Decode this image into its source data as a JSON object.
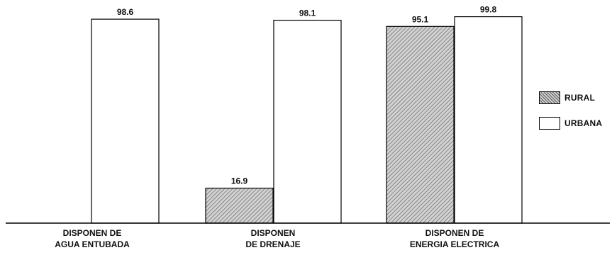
{
  "chart_data": {
    "type": "bar",
    "categories": [
      [
        "DISPONEN DE",
        "AGUA ENTUBADA"
      ],
      [
        "DISPONEN",
        "DE DRENAJE"
      ],
      [
        "DISPONEN DE",
        "ENERGIA ELECTRICA"
      ]
    ],
    "series": [
      {
        "name": "RURAL",
        "values": [
          null,
          16.9,
          95.1
        ],
        "color": "#cfcfcf",
        "pattern": "hatched"
      },
      {
        "name": "URBANA",
        "values": [
          98.6,
          98.1,
          99.8
        ],
        "color": "#ffffff",
        "pattern": "solid"
      }
    ],
    "data_labels": [
      [
        "",
        "98.6"
      ],
      [
        "16.9",
        "98.1"
      ],
      [
        "95.1",
        "99.8"
      ]
    ],
    "title": "",
    "xlabel": "",
    "ylabel": "",
    "ylim": [
      0,
      100
    ],
    "grid": false,
    "legend": "right"
  },
  "legend": {
    "rural_label": "RURAL",
    "urbana_label": "URBANA"
  }
}
